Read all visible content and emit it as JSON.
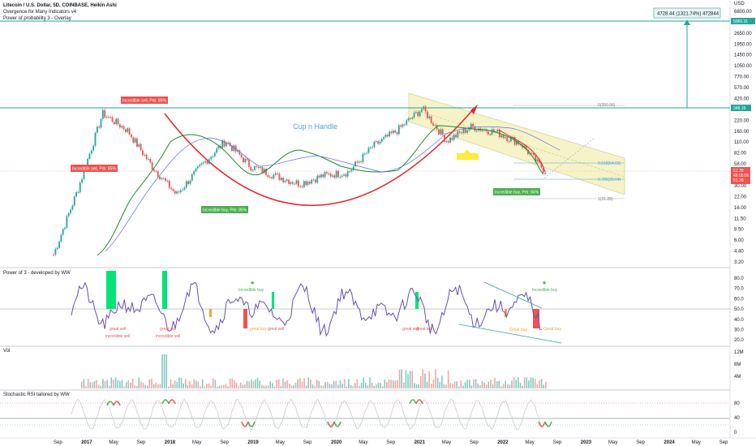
{
  "header": {
    "title": "Litecoin / U.S. Dollar, 5D, COINBASE, Heikin Ashi",
    "line2": "Overgence for Many Indicators v4",
    "line3": "Power of probability 3 - Overlay"
  },
  "price_axis": {
    "currency": "USD",
    "ticks": [
      "6800.00",
      "3650.00",
      "2650.00",
      "1950.00",
      "1450.00",
      "1050.00",
      "770.00",
      "570.00",
      "420.00",
      "300.00",
      "220.00",
      "160.00",
      "110.00",
      "82.00",
      "58.00",
      "42.00",
      "30.00",
      "22.00",
      "16.00",
      "11.50",
      "8.50",
      "6.00",
      "4.40",
      "3.20"
    ],
    "target_label": "5065.31",
    "resistance_label": "348.15",
    "current_label_1": "51.39",
    "current_label_2": "46:05:06",
    "current_label_3": "51.39"
  },
  "measure_box": "4728.44 (1321.74%) 472844",
  "fib_labels": [
    "0(350.96)",
    "0.618(64.69)",
    "0.786(39.64)",
    "1(21.28)"
  ],
  "pattern_label": "Cup n Handle",
  "signal_boxes": {
    "sell_top": "Incredible sell, Prb: 85%",
    "sell_left": "Incredible sell, Prb: 85%",
    "buy_left": "Incredible buy, Prb: 85%",
    "buy_right": "Incredible buy, Prb: 84%"
  },
  "power_pane": {
    "title": "Power of 3 - developed by WW",
    "ticks": [
      "80.0",
      "70.0",
      "60.0",
      "50.0",
      "40.0",
      "30.0",
      "20.0"
    ],
    "labels": {
      "great_sell_1": "great sell",
      "incredible_sell_1": "incredible sell",
      "great_sell_2": "great sell",
      "incredible_sell_2": "incredible sell",
      "great_buy_1": "great buy",
      "great_buy_2": "great buy",
      "great_sell_3": "great sell",
      "great_sell_4": "great sell",
      "great_sell_5": "great sell",
      "great_buy_3": "Great buy",
      "great_buy_4": "Great buy",
      "incredible_buy_1": "Incredible buy",
      "incredible_buy_2": "Incredible buy"
    }
  },
  "vol_pane": {
    "title": "Vol",
    "ticks": [
      "12M",
      "8M",
      "4M"
    ]
  },
  "rsi_pane": {
    "title": "Stochastic RSI tailored by WW",
    "ticks": [
      "80",
      "40",
      "0"
    ]
  },
  "time_axis": [
    "Sep",
    "2017",
    "May",
    "Sep",
    "2018",
    "May",
    "Sep",
    "2019",
    "May",
    "Sep",
    "2020",
    "May",
    "Sep",
    "2021",
    "May",
    "Sep",
    "2022",
    "May",
    "Sep",
    "2023",
    "May",
    "Sep",
    "2024",
    "May",
    "Sep"
  ],
  "colors": {
    "up": "#26a69a",
    "down": "#ef5350",
    "cup": "#e8242b",
    "ma_green": "#1b8a2e",
    "ma_blue": "#5b6ee1",
    "channel": "#f7f3c8",
    "teal": "#26a69a",
    "fib_blue": "#4aa3df",
    "power_line": "#6a4fb3"
  },
  "chart_data": {
    "type": "line",
    "x": [
      "2017-01",
      "2017-06",
      "2017-12",
      "2018-04",
      "2018-08",
      "2018-12",
      "2019-03",
      "2019-06",
      "2019-09",
      "2019-12",
      "2020-03",
      "2020-06",
      "2020-09",
      "2020-12",
      "2021-02",
      "2021-05",
      "2021-07",
      "2021-10",
      "2021-12",
      "2022-03",
      "2022-05"
    ],
    "series": [
      {
        "values": [
          4,
          30,
          300,
          180,
          60,
          25,
          60,
          130,
          60,
          45,
          35,
          45,
          50,
          110,
          180,
          350,
          130,
          200,
          170,
          120,
          51
        ]
      }
    ],
    "yscale": "log",
    "ylim": [
      3.2,
      6800
    ]
  }
}
